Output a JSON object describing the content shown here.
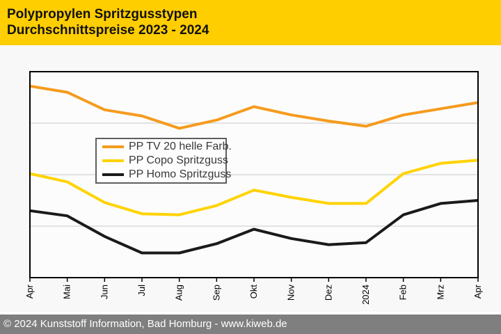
{
  "header": {
    "title_line1": "Polypropylen Spritzgusstypen",
    "title_line2": "Durchschnittspreise 2023 - 2024",
    "background": "#FFCE00",
    "text_color": "#111111"
  },
  "chart_data": {
    "type": "line",
    "title": "Polypropylen Spritzgusstypen Durchschnittspreise 2023 - 2024",
    "categories": [
      "Apr",
      "Mai",
      "Jun",
      "Jul",
      "Aug",
      "Sep",
      "Okt",
      "Nov",
      "Dez",
      "2024",
      "Feb",
      "Mrz",
      "Apr"
    ],
    "series": [
      {
        "name": "PP TV 20 helle Farb.",
        "color": "#F59B1E",
        "values": [
          93,
          90,
          81.5,
          78.5,
          72.5,
          76.5,
          83,
          79,
          76,
          73.5,
          79,
          82,
          85
        ]
      },
      {
        "name": "PP Copo Spritzguss",
        "color": "#FFD300",
        "values": [
          50.5,
          46.5,
          36.5,
          31,
          30.5,
          35,
          42.5,
          39,
          36,
          36,
          50.5,
          55.5,
          57
        ]
      },
      {
        "name": "PP Homo Spritzguss",
        "color": "#1A1A1A",
        "values": [
          32.5,
          30,
          20,
          12,
          12,
          16.5,
          23.5,
          19,
          16,
          17,
          30.5,
          36,
          37.5
        ]
      }
    ],
    "xlabel": "",
    "ylabel": "",
    "y_axis": {
      "labels_visible": false,
      "unit": "relative level, 0-100 of plot height (no y tick labels shown in chart)",
      "range": [
        0,
        100
      ],
      "gridlines_at": [
        25,
        50,
        75
      ]
    },
    "x_tick_rotation": -90,
    "legend_position": "inside-upper-left",
    "plot_background": "#FCFCFC",
    "gridline_color": "#D9D9D9"
  },
  "footer": {
    "copyright": "© 2024 Kunststoff Information, Bad Homburg - www.kiweb.de",
    "background": "#7F7F7F",
    "text_color": "#FFFFFF"
  }
}
